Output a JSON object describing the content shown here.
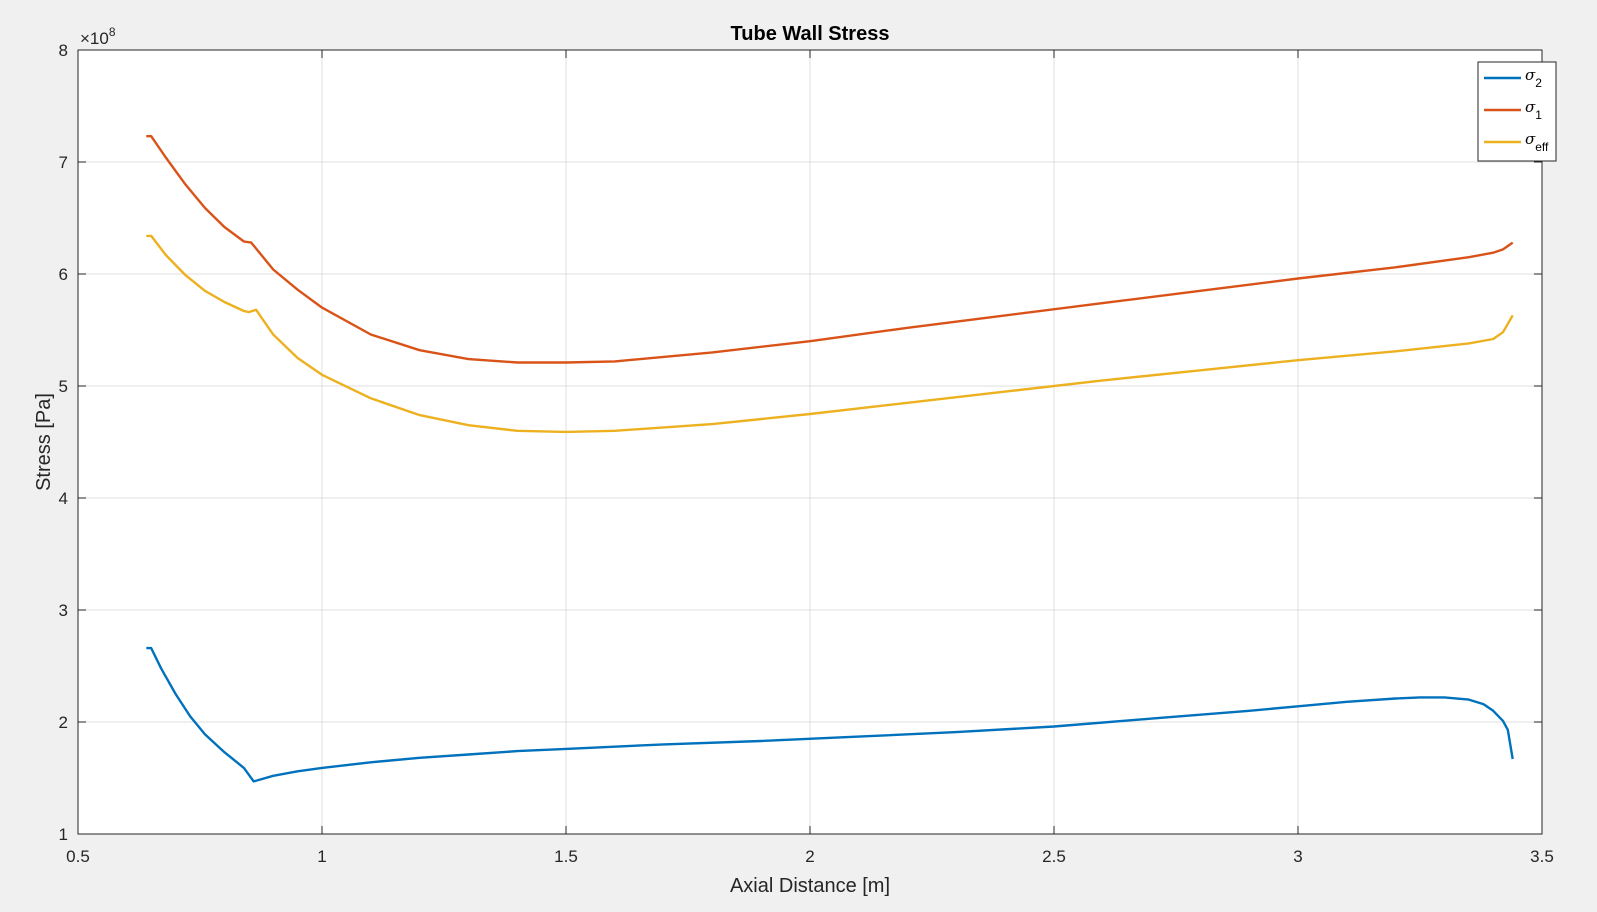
{
  "chart_data": {
    "type": "line",
    "title": "Tube Wall Stress",
    "xlabel": "Axial Distance [m]",
    "ylabel": "Stress [Pa]",
    "y_exponent": {
      "base": "×10",
      "power": "8"
    },
    "xlim": [
      0.5,
      3.5
    ],
    "ylim": [
      1,
      8
    ],
    "xticks": [
      0.5,
      1,
      1.5,
      2,
      2.5,
      3,
      3.5
    ],
    "xtick_labels": [
      "0.5",
      "1",
      "1.5",
      "2",
      "2.5",
      "3",
      "3.5"
    ],
    "yticks": [
      1,
      2,
      3,
      4,
      5,
      6,
      7,
      8
    ],
    "ytick_labels": [
      "1",
      "2",
      "3",
      "4",
      "5",
      "6",
      "7",
      "8"
    ],
    "grid": true,
    "legend_position": "top-right",
    "series": [
      {
        "symbol": "σ",
        "sub": "2",
        "color": "#0072BD",
        "x": [
          0.64,
          0.65,
          0.67,
          0.7,
          0.73,
          0.76,
          0.8,
          0.84,
          0.86,
          0.9,
          0.95,
          1.0,
          1.1,
          1.2,
          1.3,
          1.4,
          1.5,
          1.7,
          1.9,
          2.1,
          2.3,
          2.5,
          2.7,
          2.9,
          3.0,
          3.1,
          3.2,
          3.25,
          3.3,
          3.35,
          3.38,
          3.4,
          3.42,
          3.43,
          3.44
        ],
        "y": [
          2.66,
          2.66,
          2.48,
          2.25,
          2.05,
          1.89,
          1.73,
          1.59,
          1.47,
          1.52,
          1.56,
          1.59,
          1.64,
          1.68,
          1.71,
          1.74,
          1.76,
          1.8,
          1.83,
          1.87,
          1.91,
          1.96,
          2.03,
          2.1,
          2.14,
          2.18,
          2.21,
          2.22,
          2.22,
          2.2,
          2.16,
          2.1,
          2.01,
          1.93,
          1.67
        ]
      },
      {
        "symbol": "σ",
        "sub": "1",
        "color": "#D95319",
        "x": [
          0.64,
          0.65,
          0.68,
          0.72,
          0.76,
          0.8,
          0.84,
          0.855,
          0.87,
          0.9,
          0.95,
          1.0,
          1.1,
          1.2,
          1.3,
          1.4,
          1.5,
          1.6,
          1.8,
          2.0,
          2.2,
          2.4,
          2.6,
          2.8,
          3.0,
          3.2,
          3.35,
          3.4,
          3.42,
          3.44
        ],
        "y": [
          7.23,
          7.23,
          7.04,
          6.8,
          6.59,
          6.42,
          6.29,
          6.28,
          6.2,
          6.04,
          5.86,
          5.7,
          5.46,
          5.32,
          5.24,
          5.21,
          5.21,
          5.22,
          5.3,
          5.4,
          5.52,
          5.63,
          5.74,
          5.85,
          5.96,
          6.06,
          6.15,
          6.19,
          6.22,
          6.28
        ]
      },
      {
        "symbol": "σ",
        "sub": "eff",
        "color": "#EDB120",
        "x": [
          0.64,
          0.65,
          0.68,
          0.72,
          0.76,
          0.8,
          0.84,
          0.85,
          0.865,
          0.9,
          0.95,
          1.0,
          1.1,
          1.2,
          1.3,
          1.4,
          1.5,
          1.6,
          1.8,
          2.0,
          2.2,
          2.4,
          2.6,
          2.8,
          3.0,
          3.2,
          3.35,
          3.4,
          3.42,
          3.44
        ],
        "y": [
          6.34,
          6.34,
          6.17,
          5.99,
          5.85,
          5.75,
          5.67,
          5.66,
          5.68,
          5.46,
          5.25,
          5.1,
          4.89,
          4.74,
          4.65,
          4.6,
          4.59,
          4.6,
          4.66,
          4.75,
          4.85,
          4.95,
          5.05,
          5.14,
          5.23,
          5.31,
          5.38,
          5.42,
          5.48,
          5.63
        ]
      }
    ]
  }
}
